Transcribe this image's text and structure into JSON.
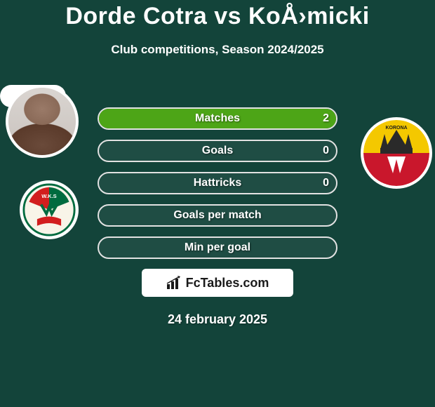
{
  "title": "Dorde Cotra vs KoÅ›micki",
  "subtitle": "Club competitions, Season 2024/2025",
  "colors": {
    "background": "#13443a",
    "border": "#e2e2e2",
    "text": "#ffffff",
    "logo_bg": "#ffffff",
    "logo_text": "#1a1a1a"
  },
  "club_left": {
    "name": "WKS Śląsk",
    "stripe_colors": [
      "#006b3f",
      "#ffffff",
      "#d21e1e"
    ],
    "ribbon_color": "#d21e1e"
  },
  "club_right": {
    "name": "Korona Kielce",
    "bg_top": "#f4c800",
    "bg_bottom": "#c9172c",
    "crown_color": "#f4c800",
    "feather_color": "#ffffff"
  },
  "stats": [
    {
      "label": "Matches",
      "value_right": "2",
      "fill_pct": 100,
      "fill_color": "#4da517"
    },
    {
      "label": "Goals",
      "value_right": "0",
      "fill_pct": 0,
      "fill_color": "#4da517"
    },
    {
      "label": "Hattricks",
      "value_right": "0",
      "fill_pct": 0,
      "fill_color": "#4da517"
    },
    {
      "label": "Goals per match",
      "value_right": "",
      "fill_pct": 0,
      "fill_color": "#4da517"
    },
    {
      "label": "Min per goal",
      "value_right": "",
      "fill_pct": 0,
      "fill_color": "#4da517"
    }
  ],
  "logo": {
    "text": "FcTables.com"
  },
  "date": "24 february 2025"
}
